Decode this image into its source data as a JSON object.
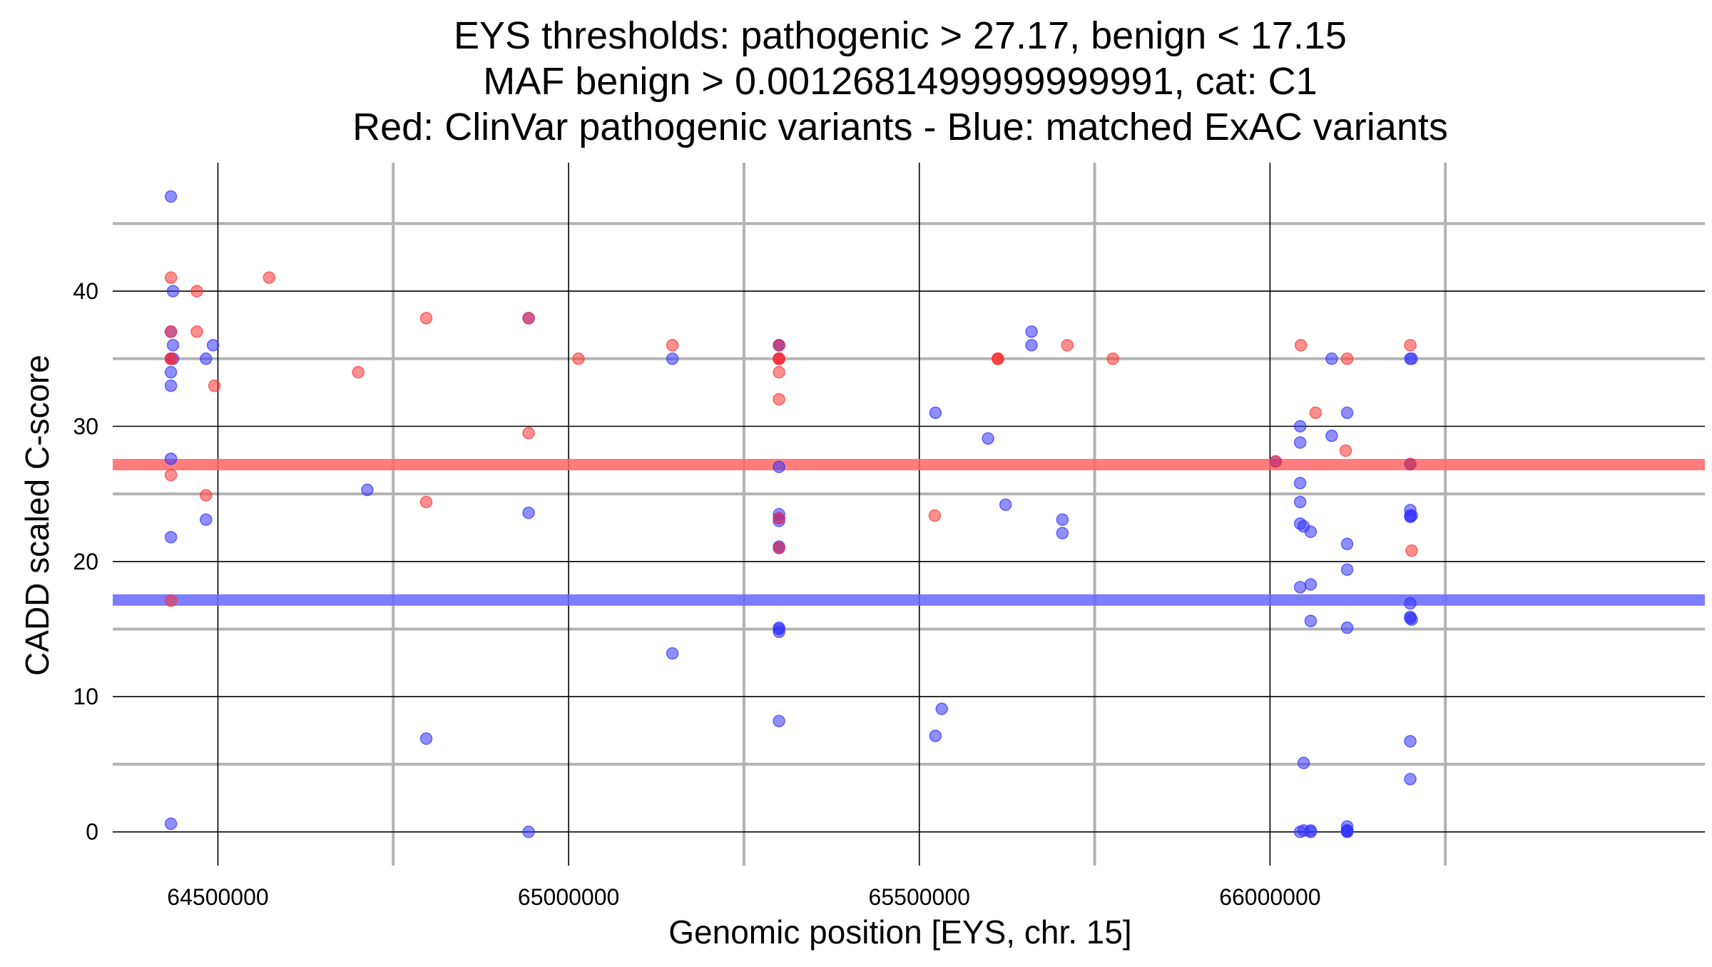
{
  "chart_data": {
    "type": "scatter",
    "title_lines": [
      "EYS thresholds: pathogenic > 27.17, benign < 17.15",
      "MAF benign > 0.0012681499999999991, cat: C1",
      "Red: ClinVar pathogenic variants - Blue: matched ExAC variants"
    ],
    "xlabel": "Genomic position [EYS, chr. 15]",
    "ylabel": "CADD scaled C-score",
    "xlim": [
      64350000,
      66620000
    ],
    "ylim": [
      -2.5,
      49.5
    ],
    "x_ticks": [
      64500000,
      65000000,
      65500000,
      66000000
    ],
    "x_tick_labels": [
      "64500000",
      "65000000",
      "65500000",
      "66000000"
    ],
    "x_minor_ticks": [
      64750000,
      65250000,
      65750000,
      66250000
    ],
    "y_ticks": [
      0,
      10,
      20,
      30,
      40
    ],
    "y_tick_labels": [
      "0",
      "10",
      "20",
      "30",
      "40"
    ],
    "y_minor_ticks": [
      5,
      15,
      25,
      35,
      45
    ],
    "grid": true,
    "thresholds": [
      {
        "name": "pathogenic",
        "value": 27.17,
        "color": "#ff6666"
      },
      {
        "name": "benign",
        "value": 17.15,
        "color": "#6666ff"
      }
    ],
    "series": [
      {
        "color": "#3333ff",
        "x": [
          64433000,
          64433000,
          64433000,
          64433000,
          64433000,
          64433000,
          64433000,
          64433000,
          64433000,
          64436000,
          64436000,
          64436000,
          64483000,
          64483000,
          64493000,
          64713000,
          64797000,
          64943000,
          64943000,
          64943000,
          65148000,
          65148000,
          65300000,
          65300000,
          65300000,
          65300000,
          65300000,
          65300000,
          65300000,
          65300000,
          65300000,
          65300000,
          65300000,
          65300000,
          65300000,
          65300000,
          65300000,
          65523000,
          65523000,
          65532000,
          65598000,
          65623000,
          65660000,
          65660000,
          65704000,
          65704000,
          66008000,
          66043000,
          66043000,
          66043000,
          66043000,
          66043000,
          66043000,
          66043000,
          66048000,
          66048000,
          66048000,
          66058000,
          66058000,
          66058000,
          66058000,
          66058000,
          66088000,
          66088000,
          66110000,
          66110000,
          66110000,
          66110000,
          66110000,
          66110000,
          66110000,
          66110000,
          66110000,
          66200000,
          66200000,
          66200000,
          66200000,
          66200000,
          66200000,
          66200000,
          66200000,
          66200000,
          66200000,
          66202000,
          66202000,
          66202000
        ],
        "y": [
          47,
          37,
          35,
          35,
          34,
          33,
          27.6,
          21.8,
          0.6,
          40,
          36,
          35,
          35,
          23.1,
          36,
          25.3,
          6.9,
          38,
          23.6,
          0,
          35,
          13.2,
          36,
          35,
          35,
          27,
          23.5,
          23.2,
          21.1,
          15.1,
          14.8,
          8.2,
          36,
          35,
          23,
          21,
          15,
          31,
          7.1,
          9.1,
          29.1,
          24.2,
          37,
          36,
          23.1,
          22.1,
          27.4,
          30,
          28.8,
          25.8,
          24.4,
          22.8,
          18.1,
          0,
          5.1,
          22.6,
          0.1,
          22.2,
          18.3,
          15.6,
          0.1,
          0,
          35,
          29.3,
          31,
          21.3,
          19.4,
          15.1,
          0.4,
          0.1,
          0,
          0.05,
          0.1,
          23.8,
          23.4,
          16.9,
          15.9,
          6.7,
          3.9,
          35,
          27.2,
          23.3,
          15.8,
          35,
          23.4,
          15.7
        ]
      },
      {
        "color": "#ff3333",
        "x": [
          64433000,
          64433000,
          64433000,
          64433000,
          64433000,
          64433000,
          64470000,
          64470000,
          64483000,
          64495000,
          64573000,
          64700000,
          64797000,
          64797000,
          64943000,
          64943000,
          65014000,
          65148000,
          65300000,
          65300000,
          65300000,
          65300000,
          65300000,
          65300000,
          65300000,
          65300000,
          65522000,
          65612000,
          65612000,
          65612000,
          65711000,
          65776000,
          66008000,
          66044000,
          66065000,
          66108000,
          66110000,
          66200000,
          66200000,
          66202000
        ],
        "y": [
          41,
          37,
          35,
          35,
          26.4,
          17.1,
          40,
          37,
          24.9,
          33,
          41,
          34,
          38,
          24.4,
          29.5,
          38,
          35,
          36,
          36,
          35,
          34,
          32,
          23.2,
          21,
          35,
          35,
          23.4,
          35,
          35,
          35,
          36,
          35,
          27.4,
          36,
          31,
          28.2,
          35,
          36,
          27.2,
          20.8
        ]
      }
    ]
  }
}
